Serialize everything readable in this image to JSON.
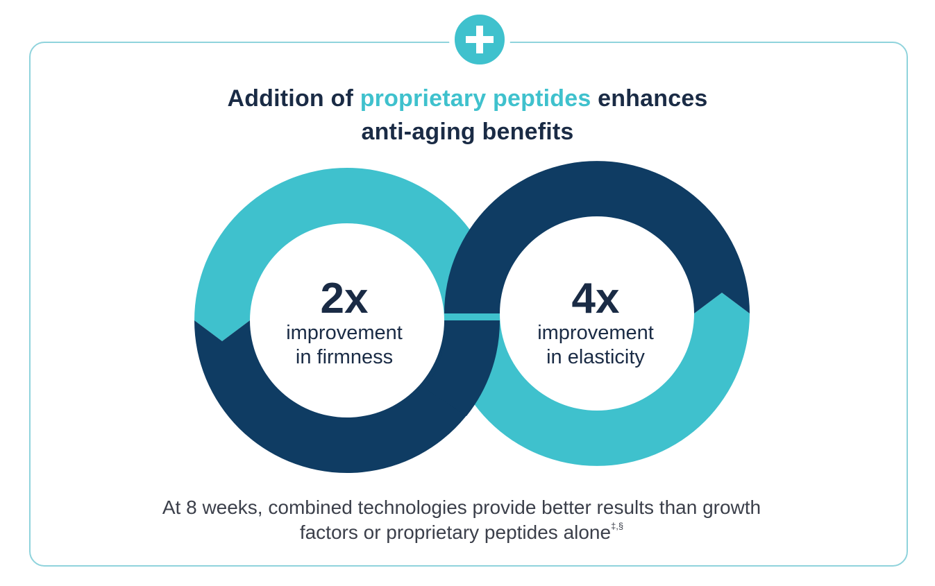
{
  "headline": {
    "prefix": "Addition of ",
    "highlight": "proprietary peptides",
    "suffix": " enhances",
    "line2": "anti-aging benefits"
  },
  "stats": [
    {
      "value": "2x",
      "label_line1": "improvement",
      "label_line2": "in firmness"
    },
    {
      "value": "4x",
      "label_line1": "improvement",
      "label_line2": "in elasticity"
    }
  ],
  "footnote": {
    "line1": "At 8 weeks, combined technologies provide better results than growth",
    "line2": "factors or proprietary peptides alone",
    "superscript": "‡,§"
  },
  "colors": {
    "teal": "#3fc1cd",
    "navy": "#0f3c63",
    "text_dark": "#1a2b45",
    "border": "#8fd3dc"
  },
  "icons": {
    "badge": "plus-icon"
  }
}
